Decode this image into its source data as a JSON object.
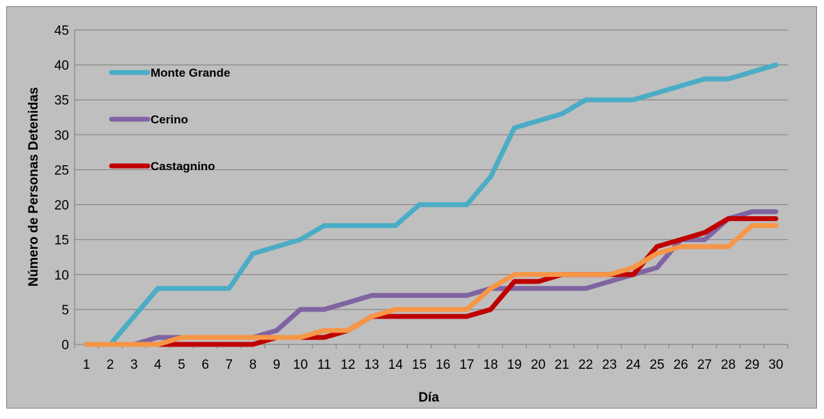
{
  "chart_data": {
    "type": "line",
    "title": "",
    "xlabel": "Día",
    "ylabel": "Número de Personas Detenidas",
    "x": [
      1,
      2,
      3,
      4,
      5,
      6,
      7,
      8,
      9,
      10,
      11,
      12,
      13,
      14,
      15,
      16,
      17,
      18,
      19,
      20,
      21,
      22,
      23,
      24,
      25,
      26,
      27,
      28,
      29,
      30
    ],
    "categories": [
      "1",
      "2",
      "3",
      "4",
      "5",
      "6",
      "7",
      "8",
      "9",
      "10",
      "11",
      "12",
      "13",
      "14",
      "15",
      "16",
      "17",
      "18",
      "19",
      "20",
      "21",
      "22",
      "23",
      "24",
      "25",
      "26",
      "27",
      "28",
      "29",
      "30"
    ],
    "ylim": [
      0,
      45
    ],
    "yticks": [
      "0",
      "5",
      "10",
      "15",
      "20",
      "25",
      "30",
      "35",
      "40",
      "45"
    ],
    "grid": true,
    "legend_position": "top-left",
    "series": [
      {
        "name": "Monte Grande",
        "color": "#4BACC6",
        "in_legend": true,
        "values": [
          0,
          0,
          4,
          8,
          8,
          8,
          8,
          13,
          14,
          15,
          17,
          17,
          17,
          17,
          20,
          20,
          20,
          24,
          31,
          32,
          33,
          35,
          35,
          35,
          36,
          37,
          38,
          38,
          39,
          40
        ]
      },
      {
        "name": "Cerino",
        "color": "#8064A2",
        "in_legend": true,
        "values": [
          0,
          0,
          0,
          1,
          1,
          1,
          1,
          1,
          2,
          5,
          5,
          6,
          7,
          7,
          7,
          7,
          7,
          8,
          8,
          8,
          8,
          8,
          9,
          10,
          11,
          15,
          15,
          18,
          19,
          19
        ]
      },
      {
        "name": "Castagnino",
        "color": "#C00000",
        "in_legend": true,
        "values": [
          0,
          0,
          0,
          0,
          0,
          0,
          0,
          0,
          1,
          1,
          1,
          2,
          4,
          4,
          4,
          4,
          4,
          5,
          9,
          9,
          10,
          10,
          10,
          10,
          14,
          15,
          16,
          18,
          18,
          18
        ]
      },
      {
        "color": "#F79646",
        "in_legend": false,
        "values": [
          0,
          0,
          0,
          0,
          1,
          1,
          1,
          1,
          1,
          1,
          2,
          2,
          4,
          5,
          5,
          5,
          5,
          8,
          10,
          10,
          10,
          10,
          10,
          11,
          13,
          14,
          14,
          14,
          17,
          17
        ]
      }
    ]
  }
}
